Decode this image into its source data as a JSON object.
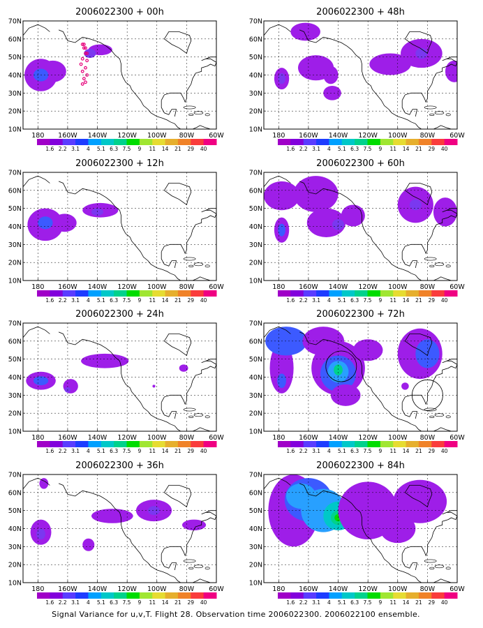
{
  "figure": {
    "caption": "Signal Variance for u,v,T. Flight 28. Observation time 2006022300. 2006022100 ensemble."
  },
  "panels": [
    {
      "title": "2006022300 + 00h",
      "intensity": 0.3,
      "flight_track": true
    },
    {
      "title": "2006022300 + 48h",
      "intensity": 0.42
    },
    {
      "title": "2006022300 + 12h",
      "intensity": 0.33
    },
    {
      "title": "2006022300 + 60h",
      "intensity": 0.48
    },
    {
      "title": "2006022300 + 24h",
      "intensity": 0.38
    },
    {
      "title": "2006022300 + 72h",
      "intensity": 0.62,
      "circles": true
    },
    {
      "title": "2006022300 + 36h",
      "intensity": 0.4
    },
    {
      "title": "2006022300 + 84h",
      "intensity": 0.7
    }
  ],
  "axes": {
    "lat_labels": [
      "70N",
      "60N",
      "50N",
      "40N",
      "30N",
      "20N",
      "10N"
    ],
    "lon_labels": [
      "180",
      "160W",
      "140W",
      "120W",
      "100W",
      "80W",
      "60W"
    ]
  },
  "colorbar": {
    "labels": [
      "1.6",
      "2.2",
      "3.1",
      "4",
      "5.1",
      "6.3",
      "7.5",
      "9",
      "11",
      "14",
      "21",
      "29",
      "40"
    ],
    "colors": [
      "#a000c8",
      "#8200dc",
      "#5a3cff",
      "#1e3cff",
      "#00a0ff",
      "#00c8c8",
      "#00d28c",
      "#00dc00",
      "#a0e632",
      "#e6dc32",
      "#e6af2d",
      "#f08228",
      "#fa3c3c",
      "#f00082"
    ]
  },
  "map_colors": {
    "purple": "#9e1ee8",
    "violet": "#7a38f0",
    "blue": "#3c5aff",
    "lightblue": "#28a0ff",
    "cyan": "#00c8c8",
    "teal": "#00d28c",
    "green": "#00dc00",
    "track": "#e6007a"
  }
}
